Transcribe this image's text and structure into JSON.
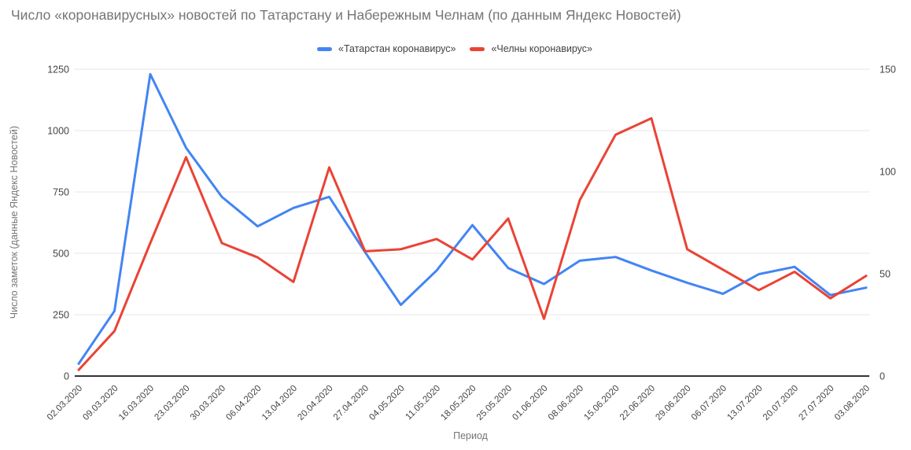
{
  "title": "Число «коронавирусных» новостей по Татарстану и Набережным Челнам (по данным Яндекс Новостей)",
  "legend": [
    {
      "label": "«Татарстан коронавирус»",
      "color": "#4285F4"
    },
    {
      "label": "«Челны коронавирус»",
      "color": "#EA4335"
    }
  ],
  "chart_data": {
    "type": "line",
    "title": "Число «коронавирусных» новостей по Татарстану и Набережным Челнам (по данным Яндекс Новостей)",
    "xlabel": "Период",
    "ylabel": "Число заметок (данные Яндекс Новостей)",
    "categories": [
      "02.03.2020",
      "09.03.2020",
      "16.03.2020",
      "23.03.2020",
      "30.03.2020",
      "06.04.2020",
      "13.04.2020",
      "20.04.2020",
      "27.04.2020",
      "04.05.2020",
      "11.05.2020",
      "18.05.2020",
      "25.05.2020",
      "01.06.2020",
      "08.06.2020",
      "15.06.2020",
      "22.06.2020",
      "29.06.2020",
      "06.07.2020",
      "13.07.2020",
      "20.07.2020",
      "27.07.2020",
      "03.08.2020"
    ],
    "series": [
      {
        "name": "«Татарстан коронавирус»",
        "color": "#4285F4",
        "axis": "left",
        "values": [
          50,
          265,
          1230,
          930,
          730,
          610,
          685,
          730,
          505,
          290,
          430,
          615,
          440,
          375,
          470,
          485,
          430,
          380,
          335,
          415,
          445,
          330,
          360
        ]
      },
      {
        "name": "«Челны коронавирус»",
        "color": "#EA4335",
        "axis": "right",
        "values": [
          3,
          22,
          65,
          107,
          65,
          58,
          46,
          102,
          61,
          62,
          67,
          57,
          77,
          28,
          86,
          118,
          126,
          62,
          52,
          42,
          51,
          38,
          49
        ]
      }
    ],
    "left_axis": {
      "range": [
        0,
        1250
      ],
      "ticks": [
        0,
        250,
        500,
        750,
        1000,
        1250
      ]
    },
    "right_axis": {
      "range": [
        0,
        150
      ],
      "ticks": [
        0,
        50,
        100,
        150
      ]
    },
    "grid": true,
    "legend_position": "top"
  },
  "colors": {
    "grid": "#e6e6e6",
    "axis_line": "#333333",
    "tick_label": "#444444",
    "muted_text": "#757575",
    "background": "#ffffff"
  }
}
